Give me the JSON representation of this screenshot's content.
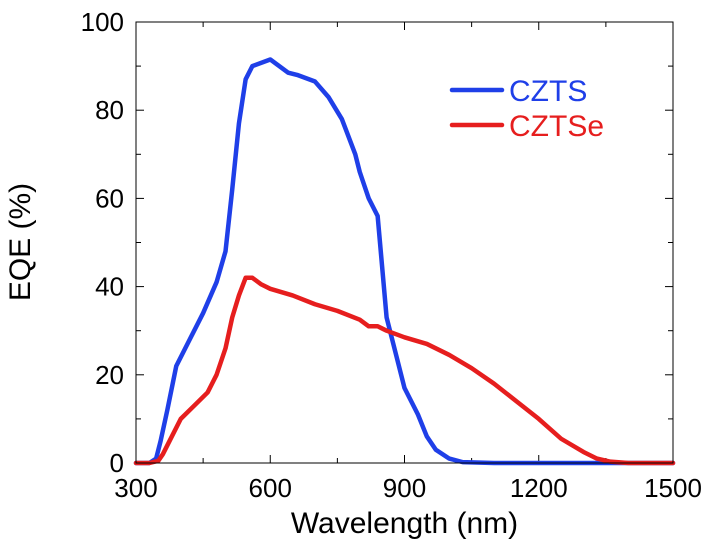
{
  "chart_data": {
    "type": "line",
    "title": "",
    "xlabel": "Wavelength (nm)",
    "ylabel": "EQE (%)",
    "xlim": [
      300,
      1500
    ],
    "ylim": [
      0,
      100
    ],
    "xticks": [
      300,
      600,
      900,
      1200,
      1500
    ],
    "yticks": [
      0,
      20,
      40,
      60,
      80,
      100
    ],
    "xtick_labels": [
      "300",
      "600",
      "900",
      "1200",
      "1500"
    ],
    "ytick_labels": [
      "0",
      "20",
      "40",
      "60",
      "80",
      "100"
    ],
    "x_minor_step": 150,
    "y_minor_step": 10,
    "grid": false,
    "legend_position": "top-right",
    "series": [
      {
        "name": "CZTS",
        "color": "#1f3fe8",
        "x": [
          300,
          330,
          345,
          355,
          370,
          390,
          420,
          450,
          480,
          500,
          515,
          530,
          545,
          560,
          600,
          620,
          640,
          660,
          700,
          730,
          760,
          790,
          800,
          810,
          820,
          840,
          860,
          880,
          900,
          930,
          950,
          970,
          1000,
          1030,
          1100,
          1200,
          1300,
          1400,
          1500
        ],
        "y": [
          0,
          0,
          1,
          5,
          12,
          22,
          28,
          34,
          41,
          48,
          62,
          77,
          87,
          90,
          91.5,
          90,
          88.5,
          88,
          86.5,
          83,
          78,
          70,
          66,
          63,
          60,
          56,
          33,
          25,
          17,
          11,
          6,
          3,
          1,
          0.2,
          0,
          0,
          0,
          0,
          0
        ]
      },
      {
        "name": "CZTSe",
        "color": "#e61e1e",
        "x": [
          300,
          330,
          350,
          360,
          375,
          400,
          430,
          460,
          480,
          500,
          515,
          530,
          545,
          560,
          580,
          600,
          650,
          700,
          750,
          800,
          820,
          840,
          860,
          900,
          950,
          1000,
          1050,
          1100,
          1150,
          1200,
          1250,
          1300,
          1330,
          1360,
          1400,
          1450,
          1500
        ],
        "y": [
          0,
          0,
          0.5,
          2,
          5,
          10,
          13,
          16,
          20,
          26,
          33,
          38,
          42,
          42,
          40.5,
          39.5,
          38,
          36,
          34.5,
          32.5,
          31,
          31,
          30,
          28.5,
          27,
          24.5,
          21.5,
          18,
          14,
          10,
          5.5,
          2.5,
          1,
          0.3,
          0,
          0,
          0
        ]
      }
    ]
  }
}
